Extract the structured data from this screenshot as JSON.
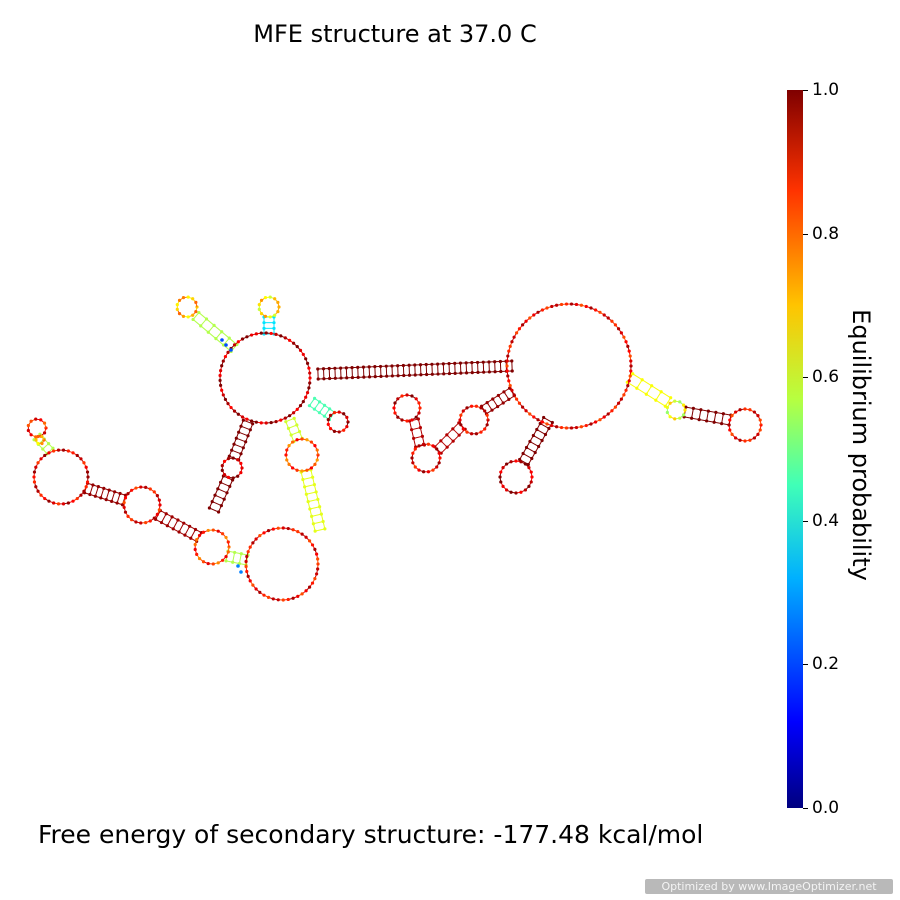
{
  "title": "MFE structure at 37.0 C",
  "energy_label": "Free energy of secondary structure: -177.48 kcal/mol",
  "watermark": "Optimized by www.ImageOptimizer.net",
  "colorbar": {
    "label": "Equilibrium probability",
    "min": 0.0,
    "max": 1.0,
    "ticks": [
      "0.0",
      "0.2",
      "0.4",
      "0.6",
      "0.8",
      "1.0"
    ],
    "colormap": "jet"
  },
  "structure": {
    "loops": [
      {
        "name": "left-terminal-hairpin",
        "prob": 0.85
      },
      {
        "name": "left-internal-loop",
        "prob": 0.7
      },
      {
        "name": "left-second-loop",
        "prob": 0.9
      },
      {
        "name": "lower-loop",
        "prob": 0.88
      },
      {
        "name": "bottom-multiloop",
        "prob": 0.82
      },
      {
        "name": "central-multiloop",
        "prob": 0.95
      },
      {
        "name": "upper-left-hairpin",
        "prob": 0.7
      },
      {
        "name": "upper-top-hairpin",
        "prob": 0.65
      },
      {
        "name": "small-right-hairpin",
        "prob": 0.92
      },
      {
        "name": "middle-loop",
        "prob": 0.8
      },
      {
        "name": "down-hairpin",
        "prob": 0.95
      },
      {
        "name": "right-internal-1",
        "prob": 0.92
      },
      {
        "name": "right-internal-2",
        "prob": 0.9
      },
      {
        "name": "right-hairpin",
        "prob": 0.9
      },
      {
        "name": "large-right-multiloop",
        "prob": 0.88
      },
      {
        "name": "right-small-loop",
        "prob": 0.6
      },
      {
        "name": "far-right-hairpin",
        "prob": 0.88
      },
      {
        "name": "bottom-right-hairpin",
        "prob": 0.95
      }
    ],
    "stems": [
      {
        "name": "long-helix",
        "prob": 1.0
      },
      {
        "name": "left-stem-1",
        "prob": 0.98
      },
      {
        "name": "left-stem-2",
        "prob": 0.97
      },
      {
        "name": "left-stem-3",
        "prob": 0.55
      },
      {
        "name": "upper-left-stem",
        "prob": 0.55
      },
      {
        "name": "upper-top-stem",
        "prob": 0.35
      },
      {
        "name": "small-right-stem",
        "prob": 0.45
      },
      {
        "name": "middle-stem",
        "prob": 0.58
      },
      {
        "name": "lower-middle-stem",
        "prob": 0.6
      },
      {
        "name": "down-stem",
        "prob": 1.0
      },
      {
        "name": "right-stem-1",
        "prob": 1.0
      },
      {
        "name": "right-stem-2",
        "prob": 0.98
      },
      {
        "name": "right-stem-3",
        "prob": 0.95
      },
      {
        "name": "far-right-stem-a",
        "prob": 0.62
      },
      {
        "name": "far-right-stem-b",
        "prob": 1.0
      },
      {
        "name": "bottom-right-stem",
        "prob": 1.0
      }
    ]
  }
}
